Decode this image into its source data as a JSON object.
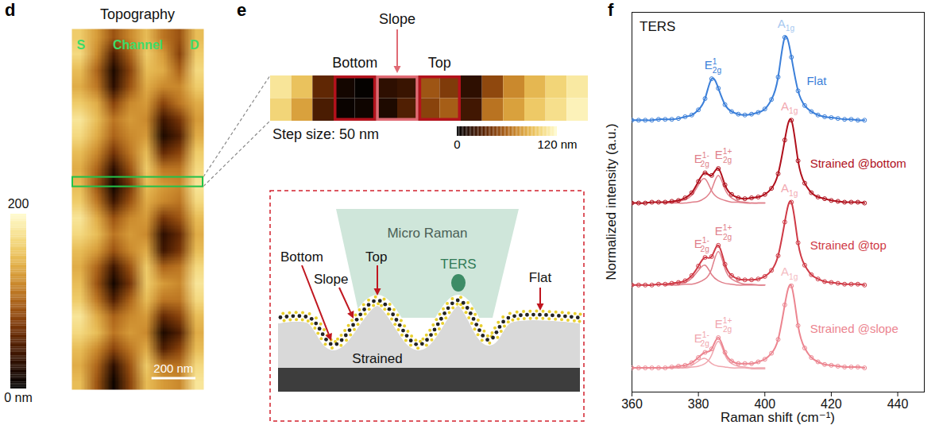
{
  "chart_data": [
    {
      "panel": "d",
      "type": "heatmap",
      "title": "Topography",
      "annotations": [
        "S",
        "Channel",
        "D"
      ],
      "xlim": [
        0,
        600
      ],
      "ylim": [
        0,
        1650
      ],
      "tick_labels": false,
      "cells": [
        [
          160,
          130,
          90,
          120,
          150,
          110,
          90,
          150
        ],
        [
          170,
          120,
          50,
          100,
          160,
          130,
          80,
          160
        ],
        [
          150,
          100,
          20,
          80,
          150,
          140,
          100,
          170
        ],
        [
          140,
          110,
          30,
          90,
          140,
          120,
          120,
          160
        ],
        [
          160,
          140,
          80,
          120,
          130,
          80,
          110,
          140
        ],
        [
          180,
          150,
          110,
          130,
          120,
          40,
          70,
          130
        ],
        [
          170,
          140,
          100,
          120,
          130,
          20,
          50,
          140
        ],
        [
          150,
          120,
          70,
          110,
          150,
          60,
          80,
          160
        ],
        [
          140,
          100,
          30,
          90,
          160,
          110,
          110,
          170
        ],
        [
          150,
          90,
          10,
          70,
          150,
          130,
          120,
          180
        ],
        [
          160,
          110,
          40,
          90,
          140,
          120,
          110,
          170
        ],
        [
          180,
          140,
          90,
          120,
          130,
          70,
          90,
          150
        ],
        [
          170,
          150,
          110,
          130,
          120,
          30,
          60,
          140
        ],
        [
          150,
          130,
          90,
          120,
          140,
          40,
          70,
          150
        ],
        [
          140,
          100,
          40,
          90,
          160,
          100,
          110,
          170
        ],
        [
          150,
          90,
          15,
          70,
          160,
          130,
          120,
          180
        ],
        [
          160,
          110,
          50,
          100,
          150,
          110,
          110,
          170
        ],
        [
          180,
          140,
          100,
          120,
          130,
          60,
          80,
          150
        ],
        [
          170,
          150,
          110,
          130,
          120,
          20,
          50,
          140
        ],
        [
          150,
          120,
          80,
          110,
          140,
          50,
          80,
          150
        ],
        [
          140,
          100,
          30,
          90,
          160,
          110,
          110,
          170
        ],
        [
          150,
          90,
          10,
          80,
          150,
          130,
          120,
          180
        ]
      ],
      "color_range": [
        0,
        200
      ],
      "color_ticks": [
        {
          "value": 0,
          "label": "0 nm"
        },
        200
      ],
      "colors": [
        "#000000",
        "#3b1200",
        "#8a3d08",
        "#d08a2a",
        "#f2d060",
        "#fffbd0"
      ],
      "scale_bar": {
        "value": 200,
        "label": "200 nm"
      },
      "line_cut": 700
    },
    {
      "panel": "e",
      "type": "heatmap",
      "tick_labels": false,
      "cells": [
        [
          108,
          92,
          35,
          8,
          2,
          18,
          22,
          55,
          45,
          18,
          50,
          72,
          88,
          100,
          110
        ],
        [
          100,
          80,
          28,
          4,
          6,
          12,
          30,
          48,
          58,
          25,
          65,
          80,
          95,
          105,
          115
        ]
      ],
      "step": 50,
      "step_label": "Step size: 50 nm",
      "regions": [
        {
          "label": "Bottom",
          "from": 150,
          "to": 250,
          "color": "#b3121c"
        },
        {
          "label": "Slope",
          "from": 250,
          "to": 350,
          "color": "#e06a74"
        },
        {
          "label": "Top",
          "from": 350,
          "to": 450,
          "color": "#b3121c"
        }
      ],
      "color_range": [
        0,
        120
      ],
      "color_ticks": [
        0,
        {
          "value": 120,
          "label": "120 nm"
        }
      ],
      "colors": [
        "#000000",
        "#3b1200",
        "#8a3d08",
        "#d08a2a",
        "#f2d060",
        "#fffbd0"
      ],
      "schematic": {
        "micro_raman": "Micro Raman",
        "ters": "TERS",
        "bottom": "Bottom",
        "slope": "Slope",
        "top": "Top",
        "flat": "Flat",
        "strained": "Strained"
      }
    },
    {
      "panel": "f",
      "type": "line",
      "title": "TERS",
      "x_label": "Raman shift (cm⁻¹)",
      "y_label": "Normalized intensity (a.u.)",
      "xlim": [
        360,
        448
      ],
      "xticks": [
        360,
        380,
        400,
        420,
        440
      ],
      "ylim": [
        0,
        4.4
      ],
      "tick_labels": "x",
      "marker": "circle",
      "x": [
        360,
        362,
        364,
        366,
        368,
        370,
        372,
        374,
        376,
        378,
        380,
        382,
        384,
        386,
        388,
        390,
        392,
        394,
        396,
        398,
        400,
        402,
        404,
        406,
        408,
        410,
        412,
        414,
        416,
        418,
        420,
        422,
        424,
        426,
        428,
        430
      ],
      "series": [
        {
          "name": "Flat",
          "color": "#3b7fd9",
          "values": [
            3.15,
            3.15,
            3.15,
            3.15,
            3.16,
            3.16,
            3.16,
            3.17,
            3.19,
            3.21,
            3.27,
            3.4,
            3.63,
            3.52,
            3.33,
            3.25,
            3.22,
            3.21,
            3.22,
            3.24,
            3.28,
            3.39,
            3.65,
            4.11,
            3.88,
            3.49,
            3.32,
            3.25,
            3.21,
            3.19,
            3.18,
            3.17,
            3.16,
            3.16,
            3.15,
            3.15
          ],
          "peaks": [
            {
              "label": {
                "text": "E",
                "sup": "1",
                "sub": "2g"
              },
              "center": 384.5,
              "color": "#3b7fd9"
            },
            {
              "label": {
                "text": "A",
                "sub": "1g"
              },
              "center": 406.5,
              "color": "#a6c8f0"
            }
          ]
        },
        {
          "name": "Strained @bottom",
          "color": "#b0101c",
          "values": [
            2.19,
            2.19,
            2.19,
            2.2,
            2.2,
            2.2,
            2.21,
            2.22,
            2.25,
            2.31,
            2.44,
            2.54,
            2.51,
            2.59,
            2.4,
            2.29,
            2.25,
            2.24,
            2.25,
            2.26,
            2.29,
            2.36,
            2.53,
            2.92,
            3.15,
            2.68,
            2.42,
            2.31,
            2.26,
            2.24,
            2.22,
            2.21,
            2.2,
            2.2,
            2.2,
            2.19
          ],
          "peaks": [
            {
              "label": {
                "text": "E",
                "sup": "1-",
                "sub": "2g"
              },
              "center": 381.5,
              "color": "#e07f8a",
              "x": [
                370,
                372,
                374,
                376,
                378,
                380,
                382,
                384,
                386,
                388,
                390,
                392,
                394,
                396,
                398,
                400
              ],
              "values": [
                2.19,
                2.2,
                2.21,
                2.23,
                2.28,
                2.4,
                2.47,
                2.33,
                2.25,
                2.22,
                2.2,
                2.2,
                2.19,
                2.19,
                2.19,
                2.19
              ]
            },
            {
              "label": {
                "text": "E",
                "sup": "1+",
                "sub": "2g"
              },
              "center": 386,
              "color": "#e07f8a",
              "x": [
                370,
                372,
                374,
                376,
                378,
                380,
                382,
                384,
                386,
                388,
                390,
                392,
                394,
                396,
                398,
                400
              ],
              "values": [
                2.19,
                2.19,
                2.19,
                2.19,
                2.2,
                2.21,
                2.25,
                2.35,
                2.51,
                2.35,
                2.25,
                2.21,
                2.2,
                2.19,
                2.19,
                2.19
              ]
            },
            {
              "label": {
                "text": "A",
                "sub": "1g"
              },
              "center": 407.5,
              "color": "#f2a9b1"
            }
          ]
        },
        {
          "name": "Strained @top",
          "color": "#cf3a46",
          "values": [
            1.24,
            1.24,
            1.24,
            1.24,
            1.25,
            1.25,
            1.26,
            1.27,
            1.29,
            1.35,
            1.46,
            1.56,
            1.57,
            1.7,
            1.48,
            1.35,
            1.31,
            1.3,
            1.3,
            1.31,
            1.34,
            1.41,
            1.58,
            1.97,
            2.2,
            1.73,
            1.47,
            1.36,
            1.31,
            1.28,
            1.27,
            1.26,
            1.25,
            1.25,
            1.25,
            1.24
          ],
          "peaks": [
            {
              "label": {
                "text": "E",
                "sup": "1-",
                "sub": "2g"
              },
              "center": 381.5,
              "color": "#e07f8a",
              "x": [
                370,
                372,
                374,
                376,
                378,
                380,
                382,
                384,
                386,
                388,
                390,
                392,
                394,
                396,
                398,
                400
              ],
              "values": [
                1.24,
                1.25,
                1.26,
                1.27,
                1.32,
                1.41,
                1.47,
                1.36,
                1.29,
                1.26,
                1.25,
                1.24,
                1.24,
                1.24,
                1.24,
                1.24
              ]
            },
            {
              "label": {
                "text": "E",
                "sup": "1+",
                "sub": "2g"
              },
              "center": 386,
              "color": "#e07f8a",
              "x": [
                370,
                372,
                374,
                376,
                378,
                380,
                382,
                384,
                386,
                388,
                390,
                392,
                394,
                396,
                398,
                400
              ],
              "values": [
                1.24,
                1.24,
                1.24,
                1.25,
                1.25,
                1.27,
                1.31,
                1.43,
                1.63,
                1.43,
                1.31,
                1.27,
                1.25,
                1.25,
                1.24,
                1.24
              ]
            },
            {
              "label": {
                "text": "A",
                "sub": "1g"
              },
              "center": 407.5,
              "color": "#f2a9b1"
            }
          ]
        },
        {
          "name": "Strained @slope",
          "color": "#ec8590",
          "values": [
            0.28,
            0.28,
            0.28,
            0.28,
            0.28,
            0.28,
            0.29,
            0.3,
            0.31,
            0.34,
            0.4,
            0.46,
            0.5,
            0.63,
            0.46,
            0.36,
            0.33,
            0.33,
            0.33,
            0.35,
            0.38,
            0.45,
            0.61,
            1.01,
            1.23,
            0.77,
            0.51,
            0.4,
            0.35,
            0.32,
            0.31,
            0.3,
            0.29,
            0.29,
            0.29,
            0.28
          ],
          "peaks": [
            {
              "label": {
                "text": "E",
                "sup": "1-",
                "sub": "2g"
              },
              "center": 381.5,
              "color": "#f0a6ae",
              "x": [
                370,
                372,
                374,
                376,
                378,
                380,
                382,
                384,
                386,
                388,
                390,
                392,
                394,
                396,
                398,
                400
              ],
              "values": [
                0.28,
                0.28,
                0.28,
                0.29,
                0.31,
                0.36,
                0.39,
                0.33,
                0.3,
                0.29,
                0.28,
                0.28,
                0.28,
                0.27,
                0.27,
                0.27
              ]
            },
            {
              "label": {
                "text": "E",
                "sup": "1+",
                "sub": "2g"
              },
              "center": 386,
              "color": "#f0a6ae",
              "x": [
                370,
                372,
                374,
                376,
                378,
                380,
                382,
                384,
                386,
                388,
                390,
                392,
                394,
                396,
                398,
                400
              ],
              "values": [
                0.28,
                0.28,
                0.28,
                0.28,
                0.29,
                0.3,
                0.33,
                0.43,
                0.59,
                0.43,
                0.33,
                0.3,
                0.29,
                0.28,
                0.28,
                0.28
              ]
            },
            {
              "label": {
                "text": "A",
                "sub": "1g"
              },
              "center": 407.5,
              "color": "#f4bcc2"
            }
          ]
        }
      ]
    }
  ]
}
